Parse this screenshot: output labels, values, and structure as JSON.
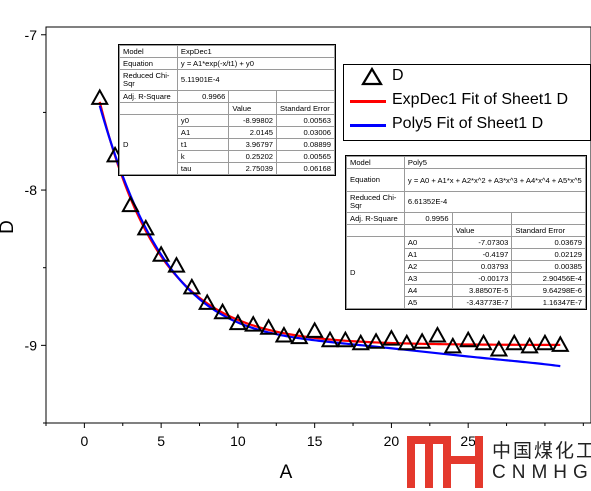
{
  "chart_data": {
    "type": "scatter",
    "title": "",
    "xlabel": "A",
    "ylabel": "D",
    "xlim": [
      -2.5,
      33
    ],
    "ylim": [
      -9.5,
      -6.95
    ],
    "x_ticks": [
      0,
      5,
      10,
      15,
      20,
      25
    ],
    "x_tick_labels": [
      "0",
      "5",
      "10",
      "15",
      "20",
      "25"
    ],
    "y_ticks": [
      -7,
      -8,
      -9
    ],
    "y_tick_labels": [
      "-7",
      "-8",
      "-9"
    ],
    "grid": false,
    "legend_position": "upper-right",
    "series": [
      {
        "name": "D",
        "kind": "scatter",
        "marker": "open-triangle",
        "color": "#000000",
        "x": [
          1,
          2,
          3,
          4,
          5,
          6,
          7,
          8,
          9,
          10,
          11,
          12,
          13,
          14,
          15,
          16,
          17,
          18,
          19,
          20,
          21,
          22,
          23,
          24,
          25,
          26,
          27,
          28,
          29,
          30,
          31
        ],
        "y": [
          -7.41,
          -7.78,
          -8.1,
          -8.25,
          -8.42,
          -8.49,
          -8.63,
          -8.73,
          -8.79,
          -8.86,
          -8.87,
          -8.89,
          -8.94,
          -8.95,
          -8.91,
          -8.97,
          -8.97,
          -8.99,
          -8.98,
          -8.96,
          -8.99,
          -8.98,
          -8.94,
          -9.01,
          -8.97,
          -8.99,
          -9.03,
          -8.99,
          -9.01,
          -8.99,
          -9.0
        ]
      },
      {
        "name": "ExpDec1 Fit of Sheet1 D",
        "kind": "line",
        "color": "#ff0000",
        "model": "expdec1",
        "params": {
          "y0": -8.99802,
          "A1": 2.0145,
          "t1": 3.96797
        },
        "x_range": [
          1,
          31
        ]
      },
      {
        "name": "Poly5 Fit of Sheet1 D",
        "kind": "line",
        "color": "#0000ff",
        "model": "poly5",
        "params": {
          "A0": -7.07303,
          "A1": -0.4197,
          "A2": 0.03793,
          "A3": -0.00173,
          "A4": 3.88507e-05,
          "A5": -3.43773e-07
        },
        "x_range": [
          1,
          31
        ]
      }
    ],
    "annotations": [
      {
        "rows": [
          [
            "Model",
            "ExpDec1"
          ],
          [
            "Equation",
            "y = A1*exp(-x/t1) + y0"
          ],
          [
            "Reduced Chi-Sqr",
            "5.11901E-4"
          ],
          [
            "Adj. R-Square",
            "0.9966"
          ],
          [
            "",
            "",
            "Value",
            "Standard Error"
          ],
          [
            "D",
            "y0",
            "-8.99802",
            "0.00563"
          ],
          [
            "",
            "A1",
            "2.0145",
            "0.03006"
          ],
          [
            "",
            "t1",
            "3.96797",
            "0.08899"
          ],
          [
            "",
            "k",
            "0.25202",
            "0.00565"
          ],
          [
            "",
            "tau",
            "2.75039",
            "0.06168"
          ]
        ]
      },
      {
        "rows": [
          [
            "Model",
            "Poly5"
          ],
          [
            "Equation",
            "y = A0 + A1*x + A2*x^2 + A3*x^3 + A4*x^4 + A5*x^5"
          ],
          [
            "Reduced Chi-Sqr",
            "6.61352E-4"
          ],
          [
            "Adj. R-Square",
            "0.9956"
          ],
          [
            "",
            "",
            "Value",
            "Standard Error"
          ],
          [
            "D",
            "A0",
            "-7.07303",
            "0.03679"
          ],
          [
            "",
            "A1",
            "-0.4197",
            "0.02129"
          ],
          [
            "",
            "A2",
            "0.03793",
            "0.00385"
          ],
          [
            "",
            "A3",
            "-0.00173",
            "2.90456E-4"
          ],
          [
            "",
            "A4",
            "3.88507E-5",
            "9.64298E-6"
          ],
          [
            "",
            "A5",
            "-3.43773E-7",
            "1.16347E-7"
          ]
        ]
      }
    ]
  },
  "tables": {
    "exp": {
      "model_label": "Model",
      "model_value": "ExpDec1",
      "equation_label": "Equation",
      "equation_value": "y = A1*exp(-x/t1) + y0",
      "chi_label": "Reduced Chi-Sqr",
      "chi_value": "5.11901E-4",
      "r2_label": "Adj. R-Square",
      "r2_value": "0.9966",
      "col_value": "Value",
      "col_error": "Standard Error",
      "group": "D",
      "params": [
        {
          "name": "y0",
          "value": "-8.99802",
          "error": "0.00563"
        },
        {
          "name": "A1",
          "value": "2.0145",
          "error": "0.03006"
        },
        {
          "name": "t1",
          "value": "3.96797",
          "error": "0.08899"
        },
        {
          "name": "k",
          "value": "0.25202",
          "error": "0.00565"
        },
        {
          "name": "tau",
          "value": "2.75039",
          "error": "0.06168"
        }
      ]
    },
    "poly": {
      "model_label": "Model",
      "model_value": "Poly5",
      "equation_label": "Equation",
      "equation_value": "y = A0 + A1*x + A2*x^2 + A3*x^3 + A4*x^4 + A5*x^5",
      "chi_label": "Reduced Chi-Sqr",
      "chi_value": "6.61352E-4",
      "r2_label": "Adj. R-Square",
      "r2_value": "0.9956",
      "col_value": "Value",
      "col_error": "Standard Error",
      "group": "D",
      "params": [
        {
          "name": "A0",
          "value": "-7.07303",
          "error": "0.03679"
        },
        {
          "name": "A1",
          "value": "-0.4197",
          "error": "0.02129"
        },
        {
          "name": "A2",
          "value": "0.03793",
          "error": "0.00385"
        },
        {
          "name": "A3",
          "value": "-0.00173",
          "error": "2.90456E-4"
        },
        {
          "name": "A4",
          "value": "3.88507E-5",
          "error": "9.64298E-6"
        },
        {
          "name": "A5",
          "value": "-3.43773E-7",
          "error": "1.16347E-7"
        }
      ]
    }
  },
  "legend": {
    "items": [
      {
        "label": "D"
      },
      {
        "label": "ExpDec1 Fit of Sheet1 D"
      },
      {
        "label": "Poly5 Fit of Sheet1 D"
      }
    ]
  },
  "watermark": {
    "text_cn": "中国煤化工",
    "text_en": "CNMHG",
    "color": "#e4392d"
  }
}
